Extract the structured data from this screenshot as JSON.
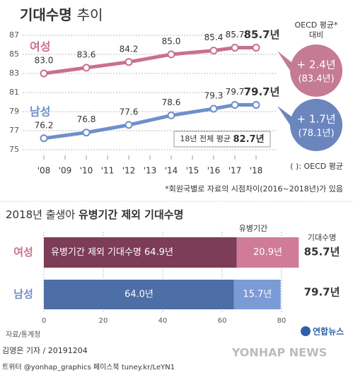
{
  "chart_data": [
    {
      "type": "line",
      "title": [
        "기대수명",
        "추이"
      ],
      "x": [
        2008,
        2010,
        2012,
        2014,
        2016,
        2017,
        2018
      ],
      "xlim": [
        2007,
        2019
      ],
      "xticks": [
        {
          "value": 2008,
          "label": "'08"
        },
        {
          "value": 2009,
          "label": "'09"
        },
        {
          "value": 2010,
          "label": "'10"
        },
        {
          "value": 2011,
          "label": "'11"
        },
        {
          "value": 2012,
          "label": "'12"
        },
        {
          "value": 2013,
          "label": "'13"
        },
        {
          "value": 2014,
          "label": "'14"
        },
        {
          "value": 2015,
          "label": "'15"
        },
        {
          "value": 2016,
          "label": "'16"
        },
        {
          "value": 2017,
          "label": "'17"
        },
        {
          "value": 2018,
          "label": "'18"
        }
      ],
      "ylim": [
        75,
        87
      ],
      "yticks": [
        75,
        77,
        79,
        81,
        83,
        85,
        87
      ],
      "grid": true,
      "series": [
        {
          "name": "여성",
          "color": "#c9718a",
          "values": [
            83.0,
            83.6,
            84.2,
            85.0,
            85.4,
            85.7,
            85.7
          ],
          "value_labels": [
            "83.0",
            "83.6",
            "84.2",
            "85.0",
            "85.4",
            "85.7",
            "85.7년"
          ]
        },
        {
          "name": "남성",
          "color": "#6e8fcb",
          "values": [
            76.2,
            76.8,
            77.6,
            78.6,
            79.3,
            79.7,
            79.7
          ],
          "value_labels": [
            "76.2",
            "76.8",
            "77.6",
            "78.6",
            "79.3",
            "79.7",
            "79.7년"
          ]
        }
      ],
      "annotations": {
        "oecd_header": [
          "OECD 평균*",
          "대비"
        ],
        "female_diff": [
          "+ 2.4년",
          "(83.4년)"
        ],
        "male_diff": [
          "+ 1.7년",
          "(78.1년)"
        ],
        "average": [
          "18년 전체 평균",
          "82.7년"
        ],
        "oecd_note": "( ): OECD 평균",
        "footnote": "*회원국별로 자료의 시점차이(2016~2018년)가 있음"
      }
    },
    {
      "type": "stacked_barh",
      "title": [
        "2018년 출생아",
        "유병기간 제외 기대수명"
      ],
      "categories": [
        "여성",
        "남성"
      ],
      "xlim": [
        0,
        90
      ],
      "xticks": [
        0,
        20,
        40,
        60,
        80
      ],
      "grid": true,
      "series": [
        {
          "colors": [
            "#7d3c57",
            "#4d6ea6"
          ],
          "values": [
            64.9,
            64.0
          ],
          "value_labels": [
            "유병기간 제외 기대수명 64.9년",
            "64.0년"
          ]
        },
        {
          "name": "유병기간",
          "colors": [
            "#d07b98",
            "#7b9bd6"
          ],
          "values": [
            20.9,
            15.7
          ],
          "value_labels": [
            "20.9년",
            "15.7년"
          ]
        }
      ],
      "total_header": "기대수명",
      "totals": [
        85.7,
        79.7
      ],
      "total_labels": [
        "85.7년",
        "79.7년"
      ]
    }
  ],
  "footer": {
    "source": "자료/통계청",
    "byline": "김영은 기자 / 20191204",
    "social": "트위터 @yonhap_graphics  페이스북 tuney.kr/LeYN1",
    "logo_kr": "연합뉴스",
    "logo_en": "YONHAP NEWS"
  }
}
